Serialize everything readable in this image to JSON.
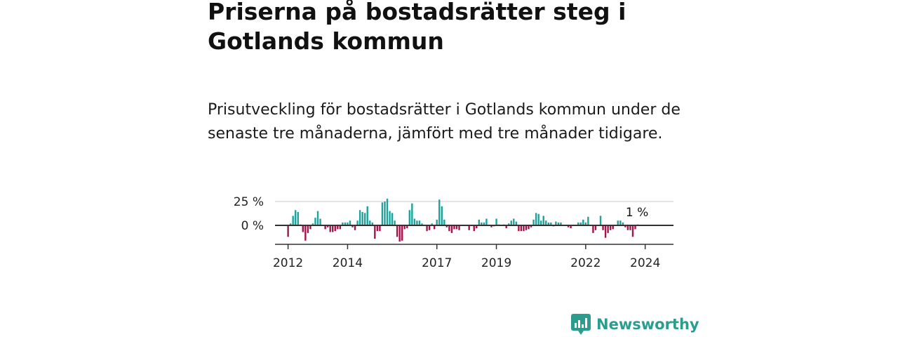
{
  "header": {
    "title": "Priserna på bostadsrätter steg i Gotlands kommun",
    "subtitle": "Prisutveckling för bostadsrätter i Gotlands kommun under de senaste tre månaderna, jämfört med tre månader tidigare."
  },
  "brand": {
    "name": "Newsworthy",
    "color": "#2a9d8f"
  },
  "colors": {
    "positive": "#1ba39c",
    "negative": "#a3154a",
    "grid": "#dcdcdc",
    "axis": "#333333"
  },
  "chart_data": {
    "type": "bar",
    "unit": "%",
    "x_start": "2011-10",
    "frequency": "monthly",
    "y_ticks": [
      {
        "value": 0,
        "label": "0 %"
      },
      {
        "value": 25,
        "label": "25 %"
      }
    ],
    "x_ticks": [
      {
        "date": "2012-01",
        "label": "2012"
      },
      {
        "date": "2014-01",
        "label": "2014"
      },
      {
        "date": "2017-01",
        "label": "2017"
      },
      {
        "date": "2019-01",
        "label": "2019"
      },
      {
        "date": "2022-01",
        "label": "2022"
      },
      {
        "date": "2024-01",
        "label": "2024"
      }
    ],
    "ylim": [
      -20,
      27
    ],
    "last_value_label": "1 %",
    "values": [
      0,
      0,
      0,
      -12,
      2,
      10,
      16,
      14,
      1,
      -7,
      -16,
      -8,
      -4,
      2,
      8,
      15,
      7,
      0,
      -4,
      -2,
      -7,
      -7,
      -6,
      -4,
      -4,
      3,
      3,
      3,
      5,
      -2,
      -5,
      5,
      16,
      14,
      13,
      20,
      5,
      3,
      -14,
      -6,
      -6,
      24,
      25,
      28,
      15,
      13,
      5,
      -12,
      -17,
      -16,
      -4,
      -3,
      16,
      23,
      7,
      5,
      5,
      2,
      0,
      -6,
      -5,
      2,
      -4,
      6,
      27,
      20,
      6,
      -2,
      -6,
      -8,
      -4,
      -4,
      -5,
      0,
      0,
      0,
      -5,
      0,
      -6,
      -3,
      6,
      3,
      3,
      7,
      0,
      -2,
      -1,
      7,
      1,
      0,
      1,
      -3,
      2,
      5,
      7,
      4,
      -6,
      -6,
      -6,
      -5,
      -4,
      -2,
      6,
      13,
      12,
      5,
      10,
      5,
      3,
      3,
      -1,
      4,
      3,
      3,
      0,
      0,
      -2,
      -3,
      0,
      0,
      3,
      3,
      6,
      3,
      9,
      0,
      -8,
      -5,
      0,
      10,
      -5,
      -13,
      -8,
      -5,
      -4,
      0,
      5,
      5,
      3,
      -2,
      -5,
      -5,
      -12,
      -4,
      1
    ]
  }
}
